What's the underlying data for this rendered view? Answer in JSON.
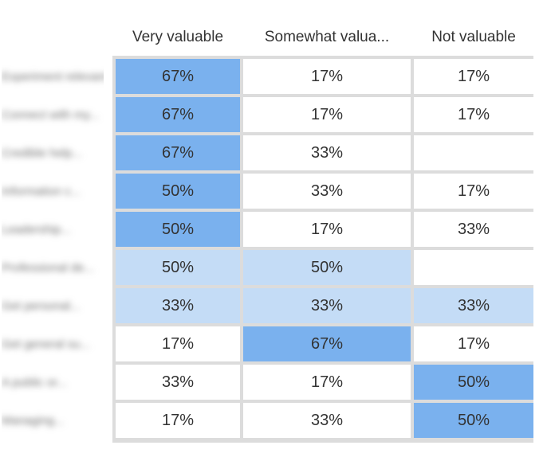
{
  "chart_data": {
    "type": "heatmap",
    "columns": [
      "Very valuable",
      "Somewhat valua...",
      "Not valuable"
    ],
    "rows": [
      {
        "label": "Experiment relevant...",
        "values": [
          "67%",
          "17%",
          "17%"
        ],
        "levels": [
          2,
          0,
          0
        ]
      },
      {
        "label": "Connect with my...",
        "values": [
          "67%",
          "17%",
          "17%"
        ],
        "levels": [
          2,
          0,
          0
        ]
      },
      {
        "label": "Credible help...",
        "values": [
          "67%",
          "33%",
          ""
        ],
        "levels": [
          2,
          0,
          0
        ]
      },
      {
        "label": "Information c...",
        "values": [
          "50%",
          "33%",
          "17%"
        ],
        "levels": [
          2,
          0,
          0
        ]
      },
      {
        "label": "Leadership...",
        "values": [
          "50%",
          "17%",
          "33%"
        ],
        "levels": [
          2,
          0,
          0
        ]
      },
      {
        "label": "Professional de...",
        "values": [
          "50%",
          "50%",
          ""
        ],
        "levels": [
          1,
          1,
          0
        ]
      },
      {
        "label": "Get personal...",
        "values": [
          "33%",
          "33%",
          "33%"
        ],
        "levels": [
          1,
          1,
          1
        ]
      },
      {
        "label": "Get general su...",
        "values": [
          "17%",
          "67%",
          "17%"
        ],
        "levels": [
          0,
          2,
          0
        ]
      },
      {
        "label": "A public or...",
        "values": [
          "33%",
          "17%",
          "50%"
        ],
        "levels": [
          0,
          0,
          2
        ]
      },
      {
        "label": "Managing...",
        "values": [
          "17%",
          "33%",
          "50%"
        ],
        "levels": [
          0,
          0,
          2
        ]
      }
    ],
    "colors": {
      "level_0": "#ffffff",
      "level_1": "#c4dcf6",
      "level_2": "#7ab1ee",
      "gridline": "#dcdcdc",
      "text": "#333333"
    }
  }
}
